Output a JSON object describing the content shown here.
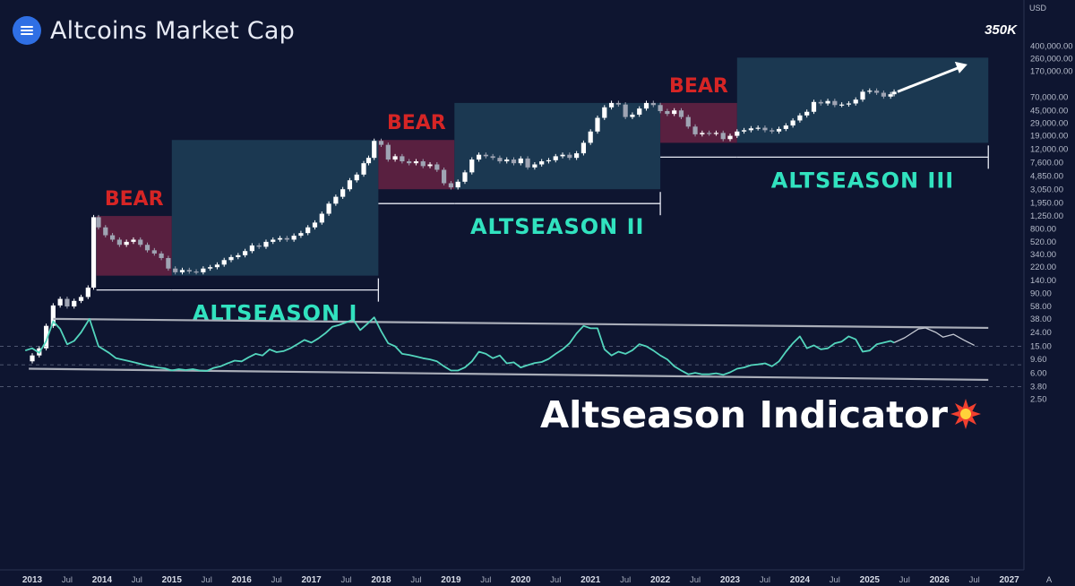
{
  "title": "Altcoins Market Cap",
  "headline": "Altseason Indicator",
  "headline_icon": "collision-icon",
  "target_label": "350K",
  "currency": "USD",
  "scale_mode": "A",
  "colors": {
    "background": "#0e1530",
    "altseason_box": "#1d3c55",
    "bear_box": "#5e2141",
    "bear_text": "#d62525",
    "altseason_text": "#31e2bf",
    "indicator_line": "#53d5bd",
    "candle_up": "#ffffff",
    "candle_down": "#9fa4b3",
    "logo": "#2f6fe4"
  },
  "chart_data": {
    "type": "candlestick",
    "scale": "log",
    "x_axis": {
      "ticks": [
        "2013",
        "Jul",
        "2014",
        "Jul",
        "2015",
        "Jul",
        "2016",
        "Jul",
        "2017",
        "Jul",
        "2018",
        "Jul",
        "2019",
        "Jul",
        "2020",
        "Jul",
        "2021",
        "Jul",
        "2022",
        "Jul",
        "2023",
        "Jul",
        "2024",
        "Jul",
        "2025",
        "Jul",
        "2026",
        "Jul",
        "2027"
      ]
    },
    "y_axis": {
      "ticks": [
        "400,000.00",
        "260,000.00",
        "170,000.00",
        "70,000.00",
        "45,000.00",
        "29,000.00",
        "19,000.00",
        "12,000.00",
        "7,600.00",
        "4,850.00",
        "3,050.00",
        "1,950.00",
        "1,250.00",
        "800.00",
        "520.00",
        "340.00",
        "220.00",
        "140.00",
        "90.00",
        "58.00",
        "38.00",
        "24.00",
        "15.00",
        "9.60",
        "6.00",
        "3.80",
        "2.50"
      ]
    },
    "zones": [
      {
        "type": "bear",
        "label": "BEAR",
        "start": 2013.92,
        "end": 2015.0,
        "high": 1250,
        "low": 165
      },
      {
        "type": "altseason",
        "label": "ALTSEASON I",
        "start": 2015.0,
        "end": 2017.96,
        "high": 16500,
        "low": 165
      },
      {
        "type": "bear",
        "label": "BEAR",
        "start": 2017.96,
        "end": 2019.05,
        "high": 16500,
        "low": 3100
      },
      {
        "type": "altseason",
        "label": "ALTSEASON II",
        "start": 2019.05,
        "end": 2022.0,
        "high": 58000,
        "low": 3100
      },
      {
        "type": "bear",
        "label": "BEAR",
        "start": 2022.0,
        "end": 2023.1,
        "high": 58000,
        "low": 15000
      },
      {
        "type": "altseason",
        "label": "ALTSEASON III",
        "start": 2023.1,
        "end": 2026.7,
        "high": 270000,
        "low": 15000
      }
    ],
    "target_arrow": {
      "from": [
        2025.4,
        85000
      ],
      "to": [
        2026.4,
        215000
      ],
      "label": "350K"
    },
    "price": [
      [
        2012.92,
        9
      ],
      [
        2013.0,
        11
      ],
      [
        2013.1,
        14
      ],
      [
        2013.2,
        30
      ],
      [
        2013.3,
        60
      ],
      [
        2013.4,
        75
      ],
      [
        2013.5,
        58
      ],
      [
        2013.6,
        70
      ],
      [
        2013.7,
        80
      ],
      [
        2013.8,
        110
      ],
      [
        2013.88,
        1200
      ],
      [
        2013.95,
        850
      ],
      [
        2014.05,
        650
      ],
      [
        2014.15,
        560
      ],
      [
        2014.25,
        470
      ],
      [
        2014.35,
        520
      ],
      [
        2014.45,
        560
      ],
      [
        2014.55,
        470
      ],
      [
        2014.65,
        390
      ],
      [
        2014.75,
        350
      ],
      [
        2014.85,
        300
      ],
      [
        2014.95,
        210
      ],
      [
        2015.05,
        185
      ],
      [
        2015.15,
        200
      ],
      [
        2015.25,
        190
      ],
      [
        2015.35,
        185
      ],
      [
        2015.45,
        210
      ],
      [
        2015.55,
        220
      ],
      [
        2015.65,
        240
      ],
      [
        2015.75,
        280
      ],
      [
        2015.85,
        310
      ],
      [
        2015.95,
        330
      ],
      [
        2016.05,
        380
      ],
      [
        2016.15,
        460
      ],
      [
        2016.25,
        440
      ],
      [
        2016.35,
        520
      ],
      [
        2016.45,
        560
      ],
      [
        2016.55,
        590
      ],
      [
        2016.65,
        560
      ],
      [
        2016.75,
        640
      ],
      [
        2016.85,
        700
      ],
      [
        2016.95,
        850
      ],
      [
        2017.05,
        1000
      ],
      [
        2017.15,
        1350
      ],
      [
        2017.25,
        1900
      ],
      [
        2017.35,
        2400
      ],
      [
        2017.45,
        3100
      ],
      [
        2017.55,
        4200
      ],
      [
        2017.65,
        5100
      ],
      [
        2017.75,
        7500
      ],
      [
        2017.82,
        9000
      ],
      [
        2017.9,
        16000
      ],
      [
        2018.0,
        14000
      ],
      [
        2018.1,
        8500
      ],
      [
        2018.2,
        9500
      ],
      [
        2018.3,
        8000
      ],
      [
        2018.4,
        7500
      ],
      [
        2018.5,
        8000
      ],
      [
        2018.6,
        6800
      ],
      [
        2018.7,
        7200
      ],
      [
        2018.8,
        6000
      ],
      [
        2018.9,
        3800
      ],
      [
        2019.0,
        3300
      ],
      [
        2019.1,
        4000
      ],
      [
        2019.2,
        5500
      ],
      [
        2019.3,
        8500
      ],
      [
        2019.4,
        10000
      ],
      [
        2019.5,
        9500
      ],
      [
        2019.6,
        9000
      ],
      [
        2019.7,
        8000
      ],
      [
        2019.8,
        8500
      ],
      [
        2019.9,
        7500
      ],
      [
        2020.0,
        8800
      ],
      [
        2020.1,
        6500
      ],
      [
        2020.2,
        7200
      ],
      [
        2020.3,
        8000
      ],
      [
        2020.4,
        8300
      ],
      [
        2020.5,
        9500
      ],
      [
        2020.6,
        10000
      ],
      [
        2020.7,
        9000
      ],
      [
        2020.8,
        10500
      ],
      [
        2020.9,
        15000
      ],
      [
        2021.0,
        22000
      ],
      [
        2021.1,
        35000
      ],
      [
        2021.2,
        50000
      ],
      [
        2021.3,
        58000
      ],
      [
        2021.4,
        55000
      ],
      [
        2021.5,
        36000
      ],
      [
        2021.6,
        39000
      ],
      [
        2021.7,
        48000
      ],
      [
        2021.8,
        58000
      ],
      [
        2021.9,
        54000
      ],
      [
        2022.0,
        44000
      ],
      [
        2022.1,
        40000
      ],
      [
        2022.2,
        45000
      ],
      [
        2022.3,
        36000
      ],
      [
        2022.4,
        26000
      ],
      [
        2022.5,
        20000
      ],
      [
        2022.6,
        21000
      ],
      [
        2022.7,
        20500
      ],
      [
        2022.8,
        21000
      ],
      [
        2022.9,
        17000
      ],
      [
        2023.0,
        19000
      ],
      [
        2023.1,
        22000
      ],
      [
        2023.2,
        23000
      ],
      [
        2023.3,
        24500
      ],
      [
        2023.4,
        25000
      ],
      [
        2023.5,
        23000
      ],
      [
        2023.6,
        22000
      ],
      [
        2023.7,
        24000
      ],
      [
        2023.8,
        27000
      ],
      [
        2023.9,
        32000
      ],
      [
        2024.0,
        38000
      ],
      [
        2024.1,
        43000
      ],
      [
        2024.2,
        60000
      ],
      [
        2024.3,
        57000
      ],
      [
        2024.4,
        62000
      ],
      [
        2024.5,
        54000
      ],
      [
        2024.6,
        55000
      ],
      [
        2024.7,
        57000
      ],
      [
        2024.8,
        65000
      ],
      [
        2024.9,
        85000
      ],
      [
        2025.0,
        88000
      ],
      [
        2025.1,
        82000
      ],
      [
        2025.2,
        72000
      ],
      [
        2025.3,
        78000
      ],
      [
        2025.35,
        85000
      ]
    ],
    "indicator": {
      "type": "line",
      "solid": [
        [
          2012.9,
          13
        ],
        [
          2013.0,
          14
        ],
        [
          2013.1,
          12
        ],
        [
          2013.2,
          18
        ],
        [
          2013.3,
          35
        ],
        [
          2013.4,
          27
        ],
        [
          2013.5,
          16
        ],
        [
          2013.6,
          18
        ],
        [
          2013.7,
          24
        ],
        [
          2013.82,
          38
        ],
        [
          2013.95,
          15
        ],
        [
          2014.1,
          12
        ],
        [
          2014.2,
          10
        ],
        [
          2014.3,
          9.5
        ],
        [
          2014.4,
          9
        ],
        [
          2014.5,
          8.5
        ],
        [
          2014.6,
          8
        ],
        [
          2014.7,
          7.6
        ],
        [
          2014.8,
          7.3
        ],
        [
          2014.9,
          7.1
        ],
        [
          2015.0,
          6.6
        ],
        [
          2015.1,
          6.9
        ],
        [
          2015.2,
          6.7
        ],
        [
          2015.3,
          6.9
        ],
        [
          2015.4,
          6.6
        ],
        [
          2015.5,
          6.5
        ],
        [
          2015.6,
          7.2
        ],
        [
          2015.7,
          7.6
        ],
        [
          2015.8,
          8.4
        ],
        [
          2015.9,
          9.2
        ],
        [
          2016.0,
          9
        ],
        [
          2016.1,
          10.3
        ],
        [
          2016.2,
          11.6
        ],
        [
          2016.3,
          11
        ],
        [
          2016.4,
          13.5
        ],
        [
          2016.5,
          12.3
        ],
        [
          2016.6,
          12.7
        ],
        [
          2016.7,
          14
        ],
        [
          2016.8,
          16.1
        ],
        [
          2016.9,
          18.6
        ],
        [
          2017.0,
          17
        ],
        [
          2017.1,
          19.6
        ],
        [
          2017.2,
          23.4
        ],
        [
          2017.3,
          29
        ],
        [
          2017.4,
          31
        ],
        [
          2017.5,
          34
        ],
        [
          2017.6,
          37
        ],
        [
          2017.7,
          26
        ],
        [
          2017.8,
          32
        ],
        [
          2017.9,
          40
        ],
        [
          2018.0,
          25
        ],
        [
          2018.1,
          16.6
        ],
        [
          2018.2,
          15
        ],
        [
          2018.3,
          11.6
        ],
        [
          2018.4,
          11.2
        ],
        [
          2018.5,
          10.6
        ],
        [
          2018.6,
          10
        ],
        [
          2018.7,
          9.6
        ],
        [
          2018.8,
          9
        ],
        [
          2018.9,
          7.6
        ],
        [
          2019.0,
          6.6
        ],
        [
          2019.1,
          6.6
        ],
        [
          2019.2,
          7.3
        ],
        [
          2019.3,
          9
        ],
        [
          2019.4,
          12.5
        ],
        [
          2019.5,
          11.6
        ],
        [
          2019.6,
          10
        ],
        [
          2019.7,
          11
        ],
        [
          2019.8,
          8.4
        ],
        [
          2019.9,
          8.7
        ],
        [
          2020.0,
          7.3
        ],
        [
          2020.1,
          7.9
        ],
        [
          2020.2,
          8.5
        ],
        [
          2020.3,
          8.8
        ],
        [
          2020.4,
          9.8
        ],
        [
          2020.5,
          11.6
        ],
        [
          2020.6,
          13.5
        ],
        [
          2020.7,
          16.6
        ],
        [
          2020.8,
          23.2
        ],
        [
          2020.9,
          30
        ],
        [
          2021.0,
          27.6
        ],
        [
          2021.1,
          27.6
        ],
        [
          2021.2,
          13.5
        ],
        [
          2021.3,
          11
        ],
        [
          2021.4,
          12.5
        ],
        [
          2021.5,
          11.6
        ],
        [
          2021.6,
          13.1
        ],
        [
          2021.7,
          16.1
        ],
        [
          2021.8,
          15
        ],
        [
          2021.9,
          13
        ],
        [
          2022.0,
          11
        ],
        [
          2022.1,
          9.6
        ],
        [
          2022.2,
          7.6
        ],
        [
          2022.3,
          6.6
        ],
        [
          2022.4,
          5.8
        ],
        [
          2022.5,
          6.1
        ],
        [
          2022.6,
          5.8
        ],
        [
          2022.7,
          5.8
        ],
        [
          2022.8,
          6
        ],
        [
          2022.9,
          5.7
        ],
        [
          2023.0,
          6.2
        ],
        [
          2023.1,
          7
        ],
        [
          2023.2,
          7.3
        ],
        [
          2023.3,
          7.9
        ],
        [
          2023.4,
          8.1
        ],
        [
          2023.5,
          8.4
        ],
        [
          2023.6,
          7.6
        ],
        [
          2023.7,
          9
        ],
        [
          2023.8,
          12.5
        ],
        [
          2023.9,
          16.6
        ],
        [
          2024.0,
          21
        ],
        [
          2024.1,
          14
        ],
        [
          2024.2,
          15.5
        ],
        [
          2024.3,
          13.5
        ],
        [
          2024.4,
          14
        ],
        [
          2024.5,
          16.6
        ],
        [
          2024.6,
          17.6
        ],
        [
          2024.7,
          21
        ],
        [
          2024.8,
          19
        ],
        [
          2024.9,
          12.5
        ],
        [
          2025.0,
          13
        ],
        [
          2025.1,
          16
        ],
        [
          2025.2,
          17
        ],
        [
          2025.3,
          18
        ],
        [
          2025.35,
          17
        ]
      ],
      "projection": [
        [
          2025.35,
          17
        ],
        [
          2025.5,
          20
        ],
        [
          2025.7,
          27
        ],
        [
          2025.8,
          28
        ],
        [
          2025.95,
          24
        ],
        [
          2026.05,
          20.5
        ],
        [
          2026.2,
          22.5
        ],
        [
          2026.35,
          18.5
        ],
        [
          2026.5,
          15.5
        ]
      ]
    },
    "trend_lines": [
      {
        "from": [
          2013.3,
          38
        ],
        "to": [
          2026.7,
          28
        ]
      },
      {
        "from": [
          2012.95,
          7
        ],
        "to": [
          2026.7,
          4.8
        ]
      }
    ],
    "reference_levels": [
      15,
      8,
      3.8
    ]
  }
}
